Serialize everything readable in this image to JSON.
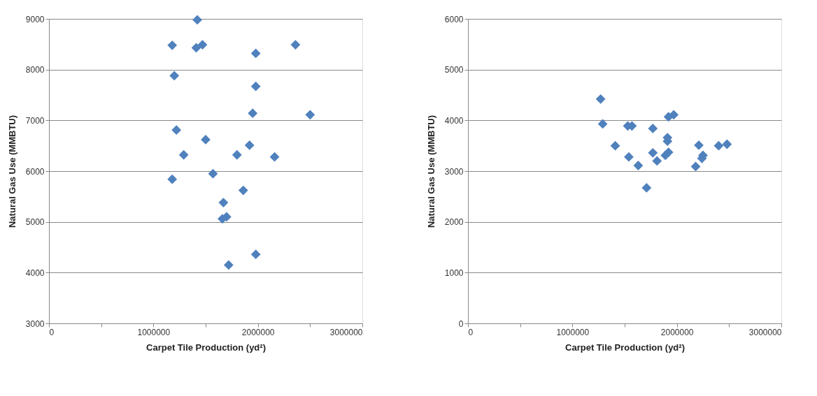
{
  "chart_data": [
    {
      "type": "scatter",
      "xlabel": "Carpet Tile Production (yd²)",
      "ylabel": "Natural Gas Use (MMBTU)",
      "marker": "diamond",
      "grid": "y",
      "xlim": [
        0,
        3000000
      ],
      "xticks": [
        0,
        {
          "value": 500000,
          "label": null
        },
        1000000,
        {
          "value": 1500000,
          "label": null
        },
        2000000,
        {
          "value": 2500000,
          "label": null
        },
        3000000
      ],
      "ylim": [
        3000,
        9000
      ],
      "yticks": [
        3000,
        4000,
        5000,
        6000,
        7000,
        8000,
        9000
      ],
      "series": [
        {
          "color": "#4f81bd",
          "x": [
            1180000,
            1420000,
            1410000,
            1470000,
            1980000,
            2360000,
            1200000,
            1980000,
            1950000,
            2500000,
            1220000,
            1500000,
            1290000,
            1800000,
            1920000,
            2160000,
            1570000,
            1180000,
            1860000,
            1670000,
            1660000,
            1700000,
            1980000,
            1720000
          ],
          "values": [
            8480,
            8980,
            8430,
            8490,
            8320,
            8490,
            7880,
            7670,
            7140,
            7110,
            6810,
            6620,
            6320,
            6320,
            6510,
            6280,
            5950,
            5840,
            5620,
            5380,
            5060,
            5100,
            4360,
            4150
          ]
        }
      ]
    },
    {
      "type": "scatter",
      "xlabel": "Carpet Tile Production (yd²)",
      "ylabel": "Natural Gas Use (MMBTU)",
      "marker": "diamond",
      "grid": "y",
      "xlim": [
        0,
        3000000
      ],
      "xticks": [
        0,
        {
          "value": 500000,
          "label": null
        },
        1000000,
        {
          "value": 1500000,
          "label": null
        },
        2000000,
        {
          "value": 2500000,
          "label": null
        },
        3000000
      ],
      "ylim": [
        0,
        6000
      ],
      "yticks": [
        0,
        1000,
        2000,
        3000,
        4000,
        5000,
        6000
      ],
      "series": [
        {
          "color": "#4f81bd",
          "x": [
            1270000,
            1290000,
            1530000,
            1570000,
            1410000,
            1540000,
            1630000,
            1710000,
            1770000,
            1770000,
            1810000,
            1920000,
            1970000,
            1910000,
            1910000,
            1890000,
            1920000,
            2210000,
            2180000,
            2250000,
            2240000,
            2400000,
            2480000
          ],
          "values": [
            4420,
            3930,
            3890,
            3890,
            3500,
            3280,
            3110,
            2670,
            3840,
            3360,
            3200,
            4070,
            4110,
            3660,
            3590,
            3310,
            3370,
            3510,
            3090,
            3310,
            3250,
            3500,
            3530
          ]
        }
      ]
    }
  ]
}
